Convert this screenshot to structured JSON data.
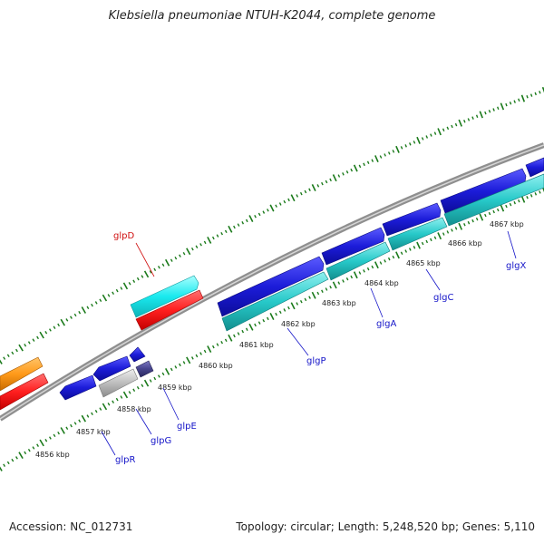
{
  "title": "Klebsiella pneumoniae NTUH-K2044, complete genome",
  "footer": {
    "accession": "Accession: NC_012731",
    "summary": "Topology: circular; Length: 5,248,520 bp; Genes: 5,110"
  },
  "colors": {
    "backbone": "#8f8f8f",
    "tick": "#1a7a1a",
    "blue": "#1c1cd9",
    "cyan": "#27c9c9",
    "bright_cyan": "#19e9ee",
    "red": "#ff1f1f",
    "orange": "#ff9a1a",
    "grey": "#bdbdbd",
    "slate": "#46438c",
    "red_label": "#d01010",
    "blue_label": "#1414c8"
  },
  "kbp_labels": [
    "4856 kbp",
    "4857 kbp",
    "4858 kbp",
    "4859 kbp",
    "4860 kbp",
    "4861 kbp",
    "4862 kbp",
    "4863 kbp",
    "4864 kbp",
    "4865 kbp",
    "4866 kbp",
    "4867 kbp"
  ],
  "gene_labels": {
    "glpD": "glpD",
    "glpR": "glpR",
    "glpG": "glpG",
    "glpE": "glpE",
    "glgP": "glgP",
    "glgA": "glgA",
    "glgC": "glgC",
    "glgX": "glgX"
  }
}
